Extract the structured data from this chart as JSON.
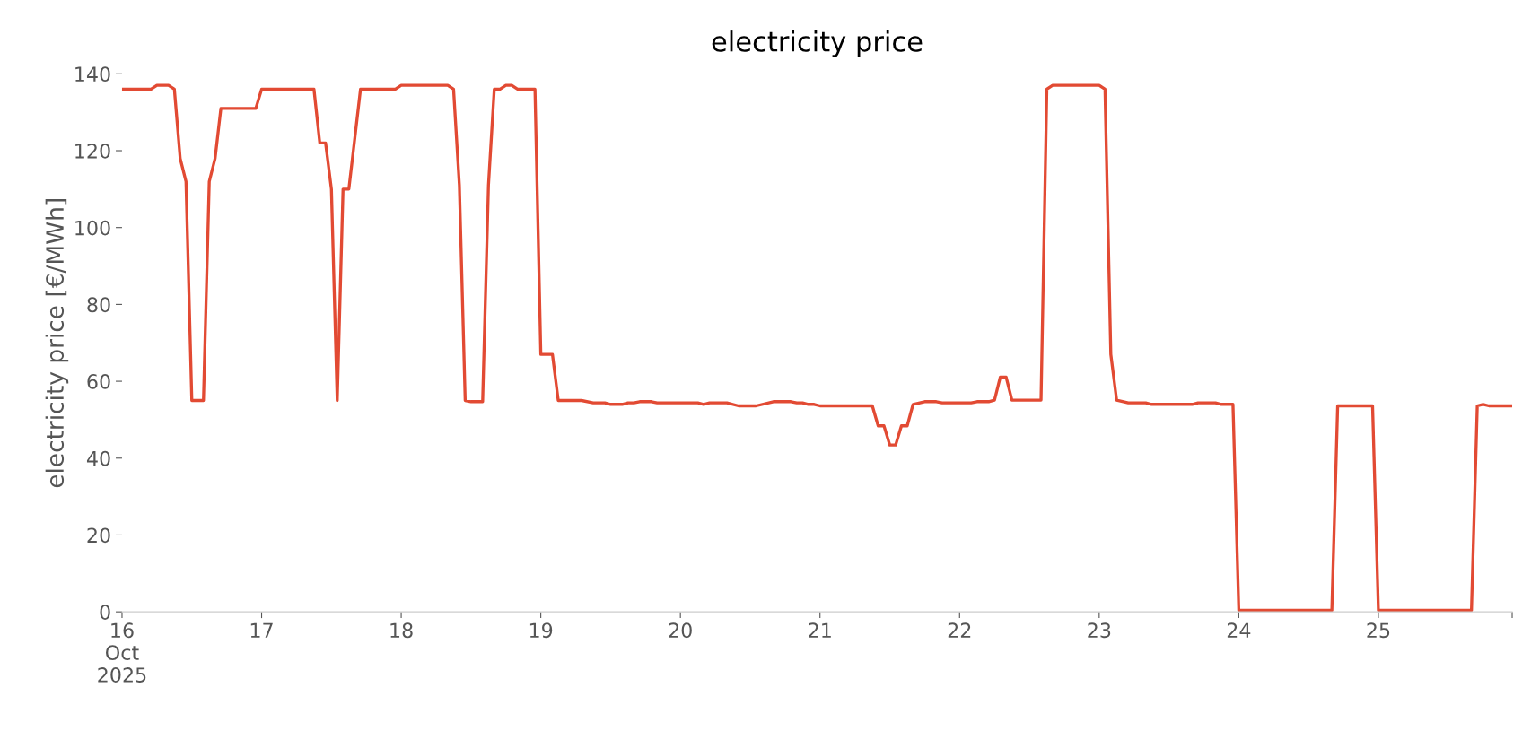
{
  "chart_data": {
    "type": "line",
    "title": "electricity price",
    "ylabel": "electricity price [€/MWh]",
    "x": [
      "2025-10-16T00:00",
      "2025-10-16T05:00",
      "2025-10-16T06:00",
      "2025-10-16T08:00",
      "2025-10-16T09:00",
      "2025-10-16T10:00",
      "2025-10-16T11:00",
      "2025-10-16T12:00",
      "2025-10-16T14:00",
      "2025-10-16T15:00",
      "2025-10-16T16:00",
      "2025-10-16T17:00",
      "2025-10-16T23:00",
      "2025-10-17T00:00",
      "2025-10-17T09:00",
      "2025-10-17T10:00",
      "2025-10-17T11:00",
      "2025-10-17T12:00",
      "2025-10-17T13:00",
      "2025-10-17T14:00",
      "2025-10-17T15:00",
      "2025-10-17T17:00",
      "2025-10-17T23:00",
      "2025-10-18T00:00",
      "2025-10-18T08:00",
      "2025-10-18T09:00",
      "2025-10-18T10:00",
      "2025-10-18T11:00",
      "2025-10-18T12:00",
      "2025-10-18T14:00",
      "2025-10-18T15:00",
      "2025-10-18T16:00",
      "2025-10-18T17:00",
      "2025-10-18T18:00",
      "2025-10-18T19:00",
      "2025-10-18T20:00",
      "2025-10-18T23:00",
      "2025-10-19T00:00",
      "2025-10-19T02:00",
      "2025-10-19T03:00",
      "2025-10-19T07:00",
      "2025-10-19T09:00",
      "2025-10-19T11:00",
      "2025-10-19T12:00",
      "2025-10-19T14:00",
      "2025-10-19T15:00",
      "2025-10-19T16:00",
      "2025-10-19T17:00",
      "2025-10-19T19:00",
      "2025-10-19T20:00",
      "2025-10-20T03:00",
      "2025-10-20T04:00",
      "2025-10-20T05:00",
      "2025-10-20T08:00",
      "2025-10-20T10:00",
      "2025-10-20T13:00",
      "2025-10-20T16:00",
      "2025-10-20T19:00",
      "2025-10-20T20:00",
      "2025-10-20T21:00",
      "2025-10-20T22:00",
      "2025-10-20T23:00",
      "2025-10-21T00:00",
      "2025-10-21T09:00",
      "2025-10-21T10:00",
      "2025-10-21T11:00",
      "2025-10-21T12:00",
      "2025-10-21T13:00",
      "2025-10-21T14:00",
      "2025-10-21T15:00",
      "2025-10-21T16:00",
      "2025-10-21T18:00",
      "2025-10-21T20:00",
      "2025-10-21T21:00",
      "2025-10-22T02:00",
      "2025-10-22T03:00",
      "2025-10-22T05:00",
      "2025-10-22T06:00",
      "2025-10-22T07:00",
      "2025-10-22T08:00",
      "2025-10-22T09:00",
      "2025-10-22T14:00",
      "2025-10-22T15:00",
      "2025-10-22T16:00",
      "2025-10-23T00:00",
      "2025-10-23T01:00",
      "2025-10-23T02:00",
      "2025-10-23T03:00",
      "2025-10-23T05:00",
      "2025-10-23T08:00",
      "2025-10-23T09:00",
      "2025-10-23T16:00",
      "2025-10-23T17:00",
      "2025-10-23T20:00",
      "2025-10-23T21:00",
      "2025-10-23T23:00",
      "2025-10-24T00:00",
      "2025-10-24T12:00",
      "2025-10-24T16:00",
      "2025-10-24T17:00",
      "2025-10-24T23:00",
      "2025-10-25T00:00",
      "2025-10-25T16:00",
      "2025-10-25T17:00",
      "2025-10-25T18:00",
      "2025-10-25T19:00",
      "2025-10-25T23:00"
    ],
    "series": [
      {
        "color": "#e24a33",
        "values": [
          136,
          136,
          137,
          137,
          136,
          118,
          112,
          55,
          55,
          112,
          118,
          131,
          131,
          136,
          136,
          122,
          122,
          110,
          55,
          110,
          110,
          136,
          136,
          137,
          137,
          136,
          111,
          55,
          54.7,
          54.7,
          111,
          136,
          136,
          137,
          137,
          136,
          136,
          67,
          67,
          55,
          55,
          54.4,
          54.4,
          54,
          54,
          54.4,
          54.4,
          54.7,
          54.7,
          54.4,
          54.4,
          54,
          54.4,
          54.4,
          53.6,
          53.6,
          54.7,
          54.7,
          54.4,
          54.4,
          54,
          54,
          53.6,
          53.6,
          48.4,
          48.4,
          43.4,
          43.4,
          48.4,
          48.4,
          54,
          54.7,
          54.7,
          54.4,
          54.4,
          54.7,
          54.7,
          55.1,
          61.1,
          61.1,
          55.1,
          55.1,
          136,
          137,
          137,
          136,
          67,
          55.1,
          54.4,
          54.4,
          54,
          54,
          54.4,
          54.4,
          54,
          54,
          0.4,
          0.4,
          0.4,
          53.6,
          53.6,
          0.4,
          0.4,
          53.6,
          54,
          53.6,
          53.6
        ]
      }
    ],
    "xticks": [
      {
        "value": "2025-10-16",
        "label": "16\nOct\n2025"
      },
      {
        "value": "2025-10-17",
        "label": "17"
      },
      {
        "value": "2025-10-18",
        "label": "18"
      },
      {
        "value": "2025-10-19",
        "label": "19"
      },
      {
        "value": "2025-10-20",
        "label": "20"
      },
      {
        "value": "2025-10-21",
        "label": "21"
      },
      {
        "value": "2025-10-22",
        "label": "22"
      },
      {
        "value": "2025-10-23",
        "label": "23"
      },
      {
        "value": "2025-10-24",
        "label": "24"
      },
      {
        "value": "2025-10-25",
        "label": "25"
      },
      {
        "value": "2025-10-25T23:00",
        "label": null
      }
    ],
    "xlim": [
      "2025-10-16T00:00",
      "2025-10-25T23:00"
    ],
    "ylim": [
      0,
      140
    ],
    "yticks": [
      0,
      20,
      40,
      60,
      80,
      100,
      120,
      140
    ],
    "marker": "none",
    "line_style": "solid"
  }
}
